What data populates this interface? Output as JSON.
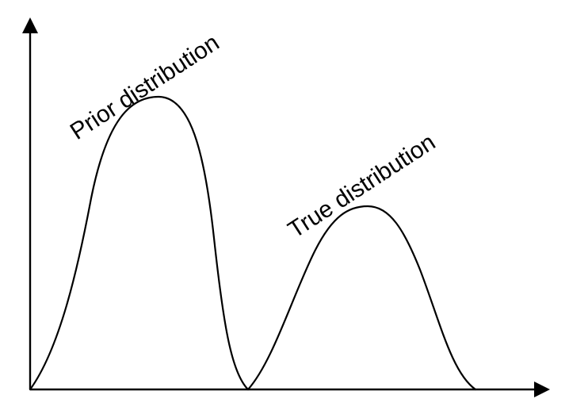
{
  "labels": {
    "prior": "Prior distribution",
    "true": "True distribution"
  },
  "colors": {
    "background": "#ffffff",
    "ink": "#000000"
  }
}
